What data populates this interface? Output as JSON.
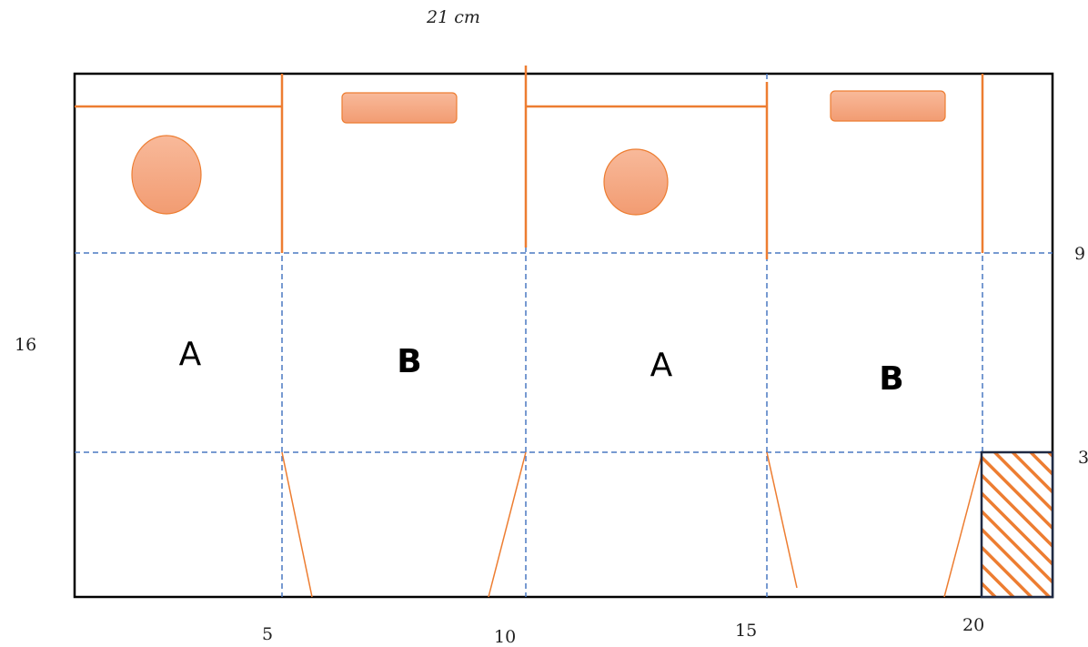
{
  "top_dimension": "21 cm",
  "left_dimension": "16",
  "right_dimensions": [
    "9",
    "3"
  ],
  "bottom_ticks": [
    "5",
    "10",
    "15",
    "20"
  ],
  "panels": [
    "A",
    "B",
    "A",
    "B"
  ],
  "colors": {
    "outline": "#000000",
    "fold_line": "#4a78c2",
    "cut_line": "#ed7d31",
    "shape_fill_top": "#f8b99a",
    "shape_fill_bottom": "#f29c72",
    "hatch_stroke": "#ed7d31",
    "hatch_border": "#1f2a44"
  }
}
